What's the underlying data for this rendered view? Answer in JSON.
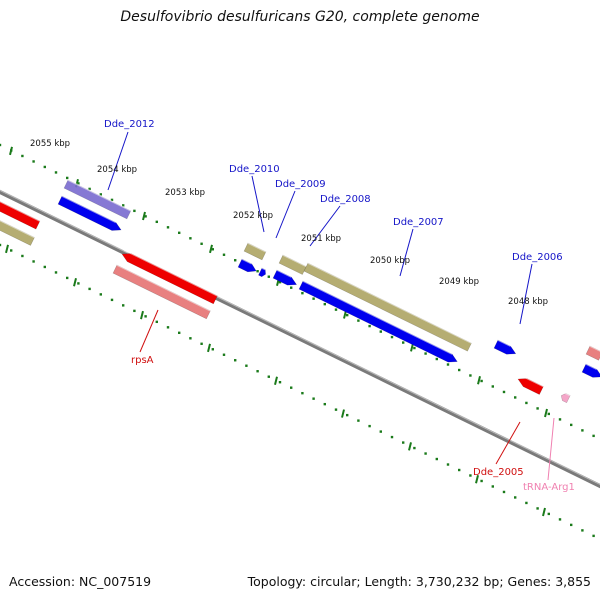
{
  "title": "Desulfovibrio desulfuricans G20, complete genome",
  "footer": {
    "accession": "Accession: NC_007519",
    "summary": "Topology: circular; Length: 3,730,232 bp; Genes: 3,855"
  },
  "colors": {
    "cds_plus": "#0000ee",
    "cds_minus": "#ee0000",
    "gene_plus": "#b5ad72",
    "gene_minus": "#e88080",
    "misc": "#7a6bd0",
    "trna": "#f4a6c8",
    "backbone": "#7a7a7a",
    "ticks": "#1a7a1a",
    "gene_label_blue": "#1515c8",
    "gene_label_red": "#d01010",
    "gene_label_pink": "#f080b0"
  },
  "scale_labels": [
    {
      "text": "2055 kbp",
      "kbp": 2055
    },
    {
      "text": "2054 kbp",
      "kbp": 2054
    },
    {
      "text": "2053 kbp",
      "kbp": 2053
    },
    {
      "text": "2052 kbp",
      "kbp": 2052
    },
    {
      "text": "2051 kbp",
      "kbp": 2051
    },
    {
      "text": "2050 kbp",
      "kbp": 2050
    },
    {
      "text": "2049 kbp",
      "kbp": 2049
    },
    {
      "text": "2048 kbp",
      "kbp": 2048
    }
  ],
  "gene_labels": [
    {
      "text": "Dde_2012",
      "color": "gene_label_blue"
    },
    {
      "text": "Dde_2010",
      "color": "gene_label_blue"
    },
    {
      "text": "Dde_2009",
      "color": "gene_label_blue"
    },
    {
      "text": "Dde_2008",
      "color": "gene_label_blue"
    },
    {
      "text": "Dde_2007",
      "color": "gene_label_blue"
    },
    {
      "text": "Dde_2006",
      "color": "gene_label_blue"
    },
    {
      "text": "rpsA",
      "color": "gene_label_red"
    },
    {
      "text": "Dde_2005",
      "color": "gene_label_red"
    },
    {
      "text": "tRNA-Arg1",
      "color": "gene_label_pink"
    }
  ]
}
